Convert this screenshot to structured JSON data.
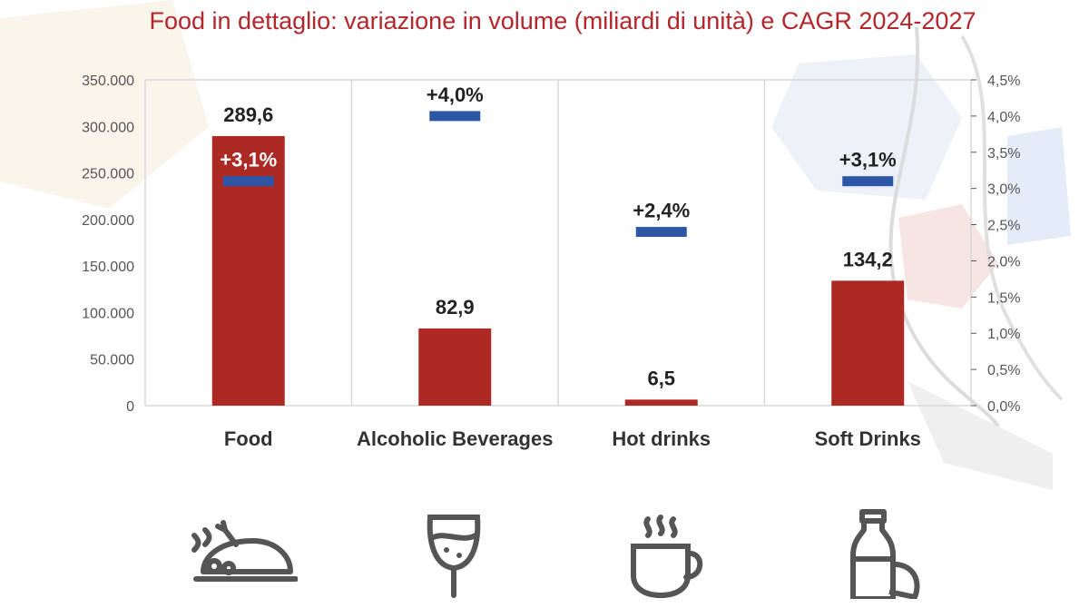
{
  "title": "Food in dettaglio: variazione in volume (miliardi di unità) e CAGR 2024-2027",
  "colors": {
    "bar": "#ad2a24",
    "marker": "#2e56a6",
    "title": "#b3262c",
    "text": "#222222",
    "axis": "#555555",
    "grid": "#d9d9d9"
  },
  "icons": [
    "roast-chicken-icon",
    "wine-glass-icon",
    "coffee-cup-icon",
    "bottle-lemon-icon"
  ],
  "chart_data": {
    "type": "bar",
    "categories": [
      "Food",
      "Alcoholic Beverages",
      "Hot drinks",
      "Soft Drinks"
    ],
    "series": [
      {
        "values": [
          289600,
          82900,
          6500,
          134200
        ],
        "labels": [
          "289,6",
          "82,9",
          "6,5",
          "134,2"
        ],
        "axis": "left",
        "kind": "bar"
      },
      {
        "values": [
          3.1,
          4.0,
          2.4,
          3.1
        ],
        "labels": [
          "+3,1%",
          "+4,0%",
          "+2,4%",
          "+3,1%"
        ],
        "axis": "right",
        "kind": "marker"
      }
    ],
    "ylim": [
      0,
      350000
    ],
    "y2lim": [
      0,
      4.5
    ],
    "yticks": [
      "0",
      "50.000",
      "100.000",
      "150.000",
      "200.000",
      "250.000",
      "300.000",
      "350.000"
    ],
    "y2ticks": [
      "0,0%",
      "0,5%",
      "1,0%",
      "1,5%",
      "2,0%",
      "2,5%",
      "3,0%",
      "3,5%",
      "4,0%",
      "4,5%"
    ],
    "grid": "vertical category separators"
  }
}
